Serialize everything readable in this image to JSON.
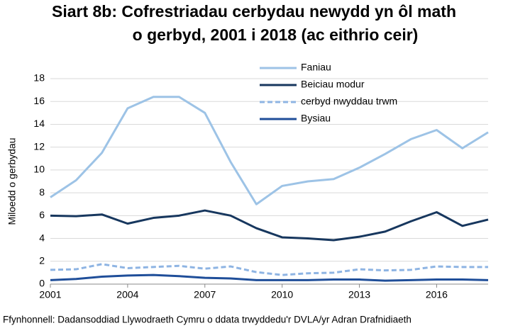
{
  "chart_data": {
    "type": "line",
    "title": [
      "Siart 8b: Cofrestriadau cerbydau newydd yn ôl math",
      "o gerbyd, 2001 i 2018 (ac eithrio ceir)"
    ],
    "y_label": "Miloedd o gerbydau",
    "source": "Ffynhonnell: Dadansoddiad Llywodraeth Cymru o ddata trwyddedu'r DVLA/yr Adran Drafnidiaeth",
    "x": [
      2001,
      2002,
      2003,
      2004,
      2005,
      2006,
      2007,
      2008,
      2009,
      2010,
      2011,
      2012,
      2013,
      2014,
      2015,
      2016,
      2017,
      2018
    ],
    "xlim": [
      2001,
      2018
    ],
    "xticks": [
      2001,
      2004,
      2007,
      2010,
      2013,
      2016
    ],
    "ylim": [
      0,
      18
    ],
    "yticks": [
      0,
      2,
      4,
      6,
      8,
      10,
      12,
      14,
      16,
      18
    ],
    "grid": true,
    "series": [
      {
        "name": "Faniau",
        "color": "#9dc3e6",
        "dashed": false,
        "values": [
          7.6,
          9.1,
          11.5,
          15.4,
          16.4,
          16.4,
          15.0,
          10.7,
          7.0,
          8.6,
          9.0,
          9.2,
          10.2,
          11.4,
          12.7,
          13.5,
          11.9,
          13.3
        ]
      },
      {
        "name": "Beiciau modur",
        "color": "#17375e",
        "dashed": false,
        "values": [
          6.0,
          5.95,
          6.1,
          5.3,
          5.8,
          6.0,
          6.45,
          6.0,
          4.9,
          4.1,
          4.0,
          3.85,
          4.15,
          4.6,
          5.5,
          6.3,
          5.1,
          5.65
        ]
      },
      {
        "name": "cerbyd nwyddau trwm",
        "color": "#8eb4e3",
        "dashed": true,
        "values": [
          1.25,
          1.3,
          1.75,
          1.4,
          1.5,
          1.6,
          1.35,
          1.55,
          1.05,
          0.8,
          0.95,
          1.0,
          1.3,
          1.2,
          1.25,
          1.55,
          1.5,
          1.5
        ]
      },
      {
        "name": "Bysiau",
        "color": "#1f4e99",
        "dashed": false,
        "values": [
          0.35,
          0.45,
          0.65,
          0.75,
          0.8,
          0.7,
          0.55,
          0.5,
          0.35,
          0.35,
          0.35,
          0.4,
          0.4,
          0.3,
          0.35,
          0.4,
          0.4,
          0.35
        ]
      }
    ]
  }
}
